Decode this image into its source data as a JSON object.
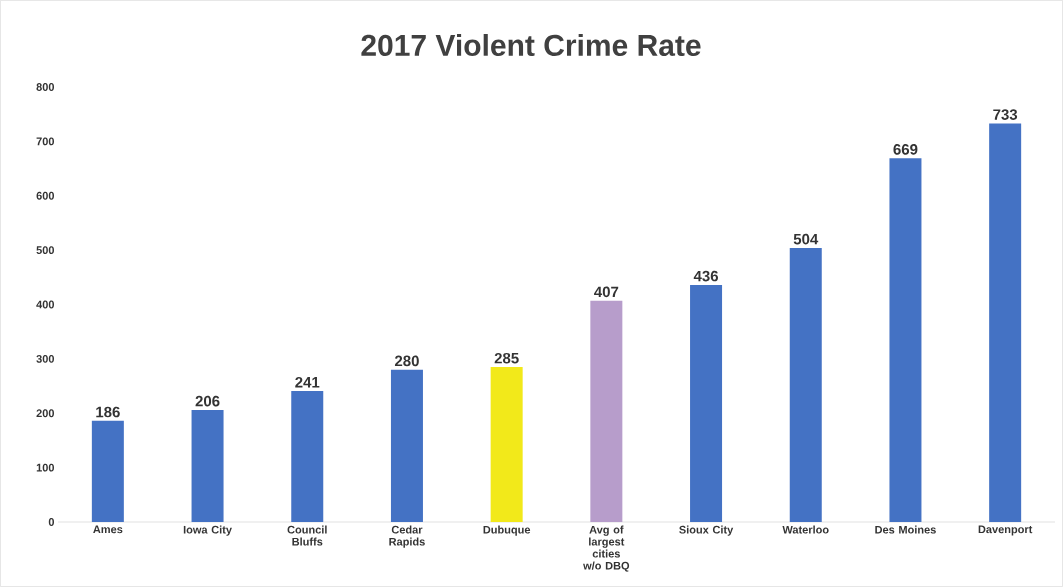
{
  "chart_data": {
    "type": "bar",
    "title": "2017 Violent Crime Rate",
    "categories": [
      "Ames",
      "Iowa City",
      "Council Bluffs",
      "Cedar Rapids",
      "Dubuque",
      "Avg of largest cities w/o DBQ",
      "Sioux City",
      "Waterloo",
      "Des Moines",
      "Davenport"
    ],
    "values": [
      186,
      206,
      241,
      280,
      285,
      407,
      436,
      504,
      669,
      733
    ],
    "colors": [
      "#4472c4",
      "#4472c4",
      "#4472c4",
      "#4472c4",
      "#f2e91a",
      "#b79dcb",
      "#4472c4",
      "#4472c4",
      "#4472c4",
      "#4472c4"
    ],
    "ylim": [
      0,
      800
    ],
    "yticks": [
      0,
      100,
      200,
      300,
      400,
      500,
      600,
      700,
      800
    ],
    "data_labels": true,
    "grid": false
  }
}
